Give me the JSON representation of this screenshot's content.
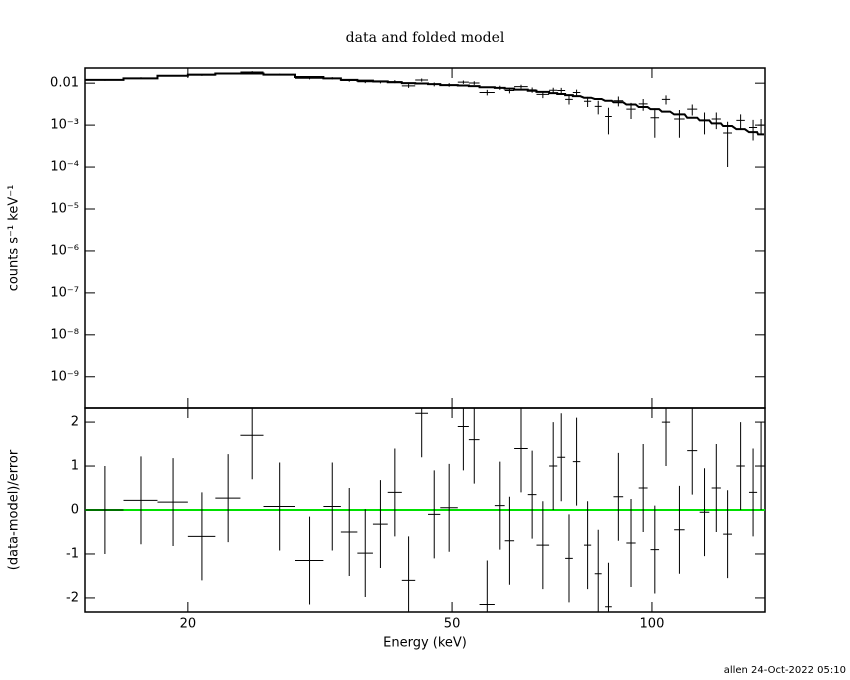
{
  "chart_data": [
    {
      "type": "errorbar",
      "title": "data and folded model",
      "ylabel": "counts s⁻¹ keV⁻¹",
      "xlog": true,
      "ylog": true,
      "xlim": [
        14,
        148
      ],
      "ylim": [
        1.8e-10,
        0.023
      ],
      "xticks": [
        20,
        50,
        100
      ],
      "yticks": [
        0.01,
        {
          "value": 0.001,
          "label": "10⁻³"
        },
        {
          "value": 0.0001,
          "label": "10⁻⁴"
        },
        {
          "value": 1e-05,
          "label": "10⁻⁵"
        },
        {
          "value": 1e-06,
          "label": "10⁻⁶"
        },
        {
          "value": 1e-07,
          "label": "10⁻⁷"
        },
        {
          "value": 1e-08,
          "label": "10⁻⁸"
        },
        {
          "value": 1e-09,
          "label": "10⁻⁹"
        }
      ],
      "color": "#000000",
      "x": [
        15,
        17,
        19,
        21,
        23,
        25,
        27.5,
        30.5,
        33,
        35,
        37,
        39,
        41,
        43,
        45,
        47,
        49.5,
        52,
        54,
        56.5,
        59,
        61,
        63.5,
        66,
        68.5,
        71,
        73,
        75,
        77,
        80,
        83,
        86,
        89,
        93,
        97,
        101,
        105,
        110,
        115,
        120,
        125,
        130,
        136,
        142,
        146
      ],
      "xerr": [
        1,
        1,
        1,
        1,
        1,
        1,
        1.5,
        1.5,
        1,
        1,
        1,
        1,
        1,
        1,
        1,
        1,
        1.5,
        1,
        1,
        1.5,
        1,
        1,
        1.5,
        1,
        1.5,
        1,
        1,
        1,
        1,
        1,
        1,
        1,
        1.5,
        1.5,
        1.5,
        1.5,
        1.5,
        2,
        2,
        2,
        2,
        2,
        2,
        2,
        1.5
      ],
      "series": [
        {
          "name": "data",
          "values": [
            0.012,
            0.0132,
            0.0151,
            0.0156,
            0.0172,
            0.0185,
            0.0161,
            0.0131,
            0.0131,
            0.0116,
            0.0108,
            0.0107,
            0.0109,
            0.0086,
            0.0119,
            0.0094,
            0.0091,
            0.0106,
            0.0101,
            0.006,
            0.0078,
            0.0067,
            0.0083,
            0.0069,
            0.0054,
            0.0068,
            0.0067,
            0.0041,
            0.006,
            0.0037,
            0.0028,
            0.0016,
            0.0038,
            0.0024,
            0.0032,
            0.0015,
            0.0041,
            0.0014,
            0.0024,
            0.0013,
            0.0014,
            0.00065,
            0.0013,
            0.00088,
            0.001
          ],
          "yerr": [
            0.0006,
            0.0006,
            0.0006,
            0.0007,
            0.0008,
            0.0009,
            0.0008,
            0.0008,
            0.0008,
            0.0008,
            0.0008,
            0.0008,
            0.0009,
            0.0009,
            0.001,
            0.001,
            0.0009,
            0.001,
            0.001,
            0.0009,
            0.0009,
            0.001,
            0.0009,
            0.001,
            0.001,
            0.001,
            0.001,
            0.001,
            0.001,
            0.001,
            0.001,
            0.001,
            0.001,
            0.001,
            0.001,
            0.001,
            0.001,
            0.0009,
            0.0007,
            0.0007,
            0.0006,
            0.00055,
            0.0005,
            0.00045,
            0.0004
          ]
        },
        {
          "name": "model",
          "values": [
            0.012,
            0.013,
            0.015,
            0.016,
            0.017,
            0.017,
            0.016,
            0.014,
            0.013,
            0.012,
            0.0115,
            0.011,
            0.0105,
            0.01,
            0.0098,
            0.0095,
            0.009,
            0.0088,
            0.0085,
            0.008,
            0.0077,
            0.0074,
            0.007,
            0.0066,
            0.0062,
            0.0058,
            0.0055,
            0.0052,
            0.0049,
            0.0045,
            0.0042,
            0.0038,
            0.0035,
            0.0031,
            0.0027,
            0.0024,
            0.0021,
            0.0018,
            0.0015,
            0.0013,
            0.0011,
            0.00095,
            0.0008,
            0.00068,
            0.0006
          ]
        }
      ]
    },
    {
      "type": "errorbar",
      "xlabel": "Energy (keV)",
      "ylabel": "(data-model)/error",
      "xlog": true,
      "xlim": [
        14,
        148
      ],
      "ylim": [
        -2.32,
        2.32
      ],
      "xticks": [
        20,
        50,
        100
      ],
      "yticks": [
        -2,
        -1,
        0,
        1,
        2
      ],
      "color": "#000000",
      "reference_line": {
        "value": 0,
        "color": "#00e000"
      },
      "x": [
        15,
        17,
        19,
        21,
        23,
        25,
        27.5,
        30.5,
        33,
        35,
        37,
        39,
        41,
        43,
        45,
        47,
        49.5,
        52,
        54,
        56.5,
        59,
        61,
        63.5,
        66,
        68.5,
        71,
        73,
        75,
        77,
        80,
        83,
        86,
        89,
        93,
        97,
        101,
        105,
        110,
        115,
        120,
        125,
        130,
        136,
        142,
        146
      ],
      "xerr": [
        1,
        1,
        1,
        1,
        1,
        1,
        1.5,
        1.5,
        1,
        1,
        1,
        1,
        1,
        1,
        1,
        1,
        1.5,
        1,
        1,
        1.5,
        1,
        1,
        1.5,
        1,
        1.5,
        1,
        1,
        1,
        1,
        1,
        1,
        1,
        1.5,
        1.5,
        1.5,
        1.5,
        1.5,
        2,
        2,
        2,
        2,
        2,
        2,
        2,
        1.5
      ],
      "series": [
        {
          "name": "residuals",
          "values": [
            0,
            0.22,
            0.18,
            -0.6,
            0.27,
            1.7,
            0.08,
            -1.15,
            0.08,
            -0.5,
            -0.98,
            -0.32,
            0.4,
            -1.6,
            2.2,
            -0.1,
            0.05,
            1.9,
            1.6,
            -2.15,
            0.1,
            -0.7,
            1.4,
            0.35,
            -0.8,
            1.0,
            1.2,
            -1.1,
            1.1,
            -0.8,
            -1.45,
            -2.2,
            0.3,
            -0.75,
            0.5,
            -0.9,
            2.0,
            -0.45,
            1.35,
            -0.05,
            0.5,
            -0.55,
            1.0,
            0.4,
            1.0
          ],
          "yerr": [
            1,
            1,
            1,
            1,
            1,
            1,
            1,
            1,
            1,
            1,
            1,
            1,
            1,
            1,
            1,
            1,
            1,
            1,
            1,
            1,
            1,
            1,
            1,
            1,
            1,
            1,
            1,
            1,
            1,
            1,
            1,
            1,
            1,
            1,
            1,
            1,
            1,
            1,
            1,
            1,
            1,
            1,
            1,
            1,
            1
          ]
        }
      ]
    }
  ],
  "footer": "allen 24-Oct-2022 05:10"
}
